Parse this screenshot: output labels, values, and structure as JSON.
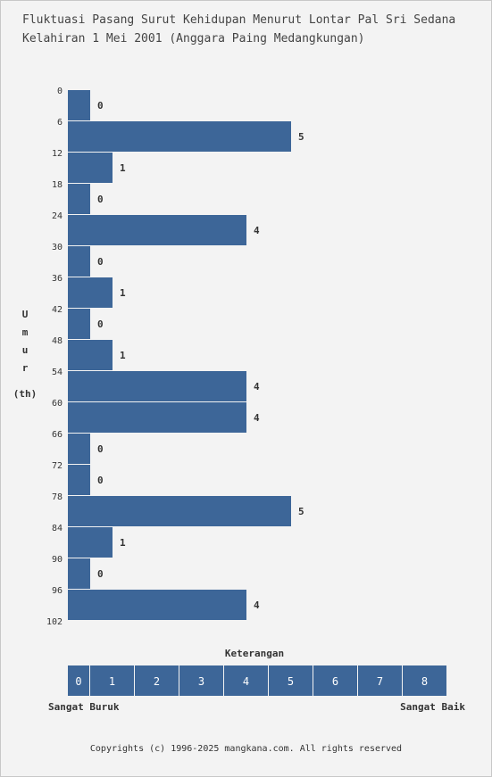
{
  "title_line1": "Fluktuasi Pasang Surut Kehidupan Menurut Lontar Pal Sri Sedana",
  "title_line2": "Kelahiran 1 Mei 2001 (Anggara Paing Medangkungan)",
  "chart_data": {
    "type": "bar",
    "orientation": "horizontal",
    "ylabel_letters": [
      "U",
      "m",
      "u",
      "r"
    ],
    "ylabel_unit": "(th)",
    "y_ticks": [
      0,
      6,
      12,
      18,
      24,
      30,
      36,
      42,
      48,
      54,
      60,
      66,
      72,
      78,
      84,
      90,
      96,
      102
    ],
    "categories": [
      0,
      6,
      12,
      18,
      24,
      30,
      36,
      42,
      48,
      54,
      60,
      66,
      72,
      78,
      84,
      90,
      96
    ],
    "values": [
      0,
      5,
      1,
      0,
      4,
      0,
      1,
      0,
      1,
      4,
      4,
      0,
      0,
      5,
      1,
      0,
      4
    ],
    "xlim": [
      0,
      8
    ],
    "bar_color": "#3d6698"
  },
  "legend": {
    "title": "Keterangan",
    "scale": [
      0,
      1,
      2,
      3,
      4,
      5,
      6,
      7,
      8
    ],
    "low_label": "Sangat Buruk",
    "high_label": "Sangat Baik",
    "color": "#3d6698"
  },
  "footer": "Copyrights (c) 1996-2025 mangkana.com. All rights reserved"
}
